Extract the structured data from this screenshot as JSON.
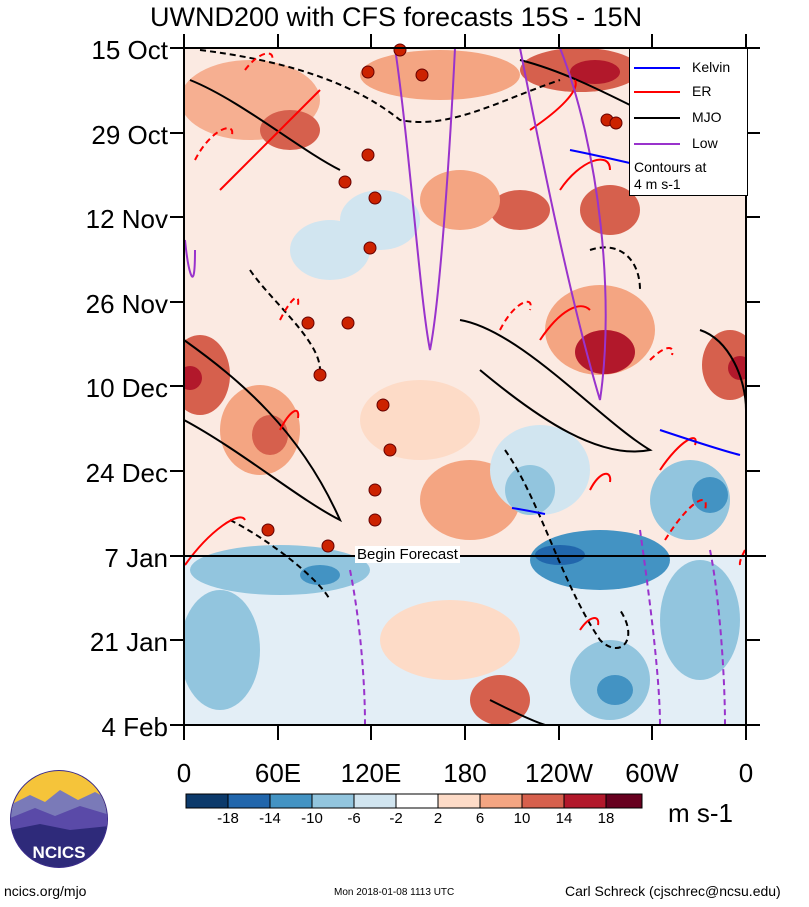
{
  "title": "UWND200 with CFS forecasts  15S - 15N",
  "chart_data": {
    "type": "heatmap",
    "title": "UWND200 with CFS forecasts  15S - 15N",
    "variable": "200 hPa zonal wind anomaly",
    "latitude_band": "15S - 15N",
    "y_tick_labels": [
      "15 Oct",
      "29 Oct",
      "12 Nov",
      "26 Nov",
      "10 Dec",
      "24 Dec",
      "7 Jan",
      "21 Jan",
      "4 Feb"
    ],
    "x_tick_labels": [
      "0",
      "60E",
      "120E",
      "180",
      "120W",
      "60W",
      "0"
    ],
    "x_range": [
      0,
      360
    ],
    "forecast_start": "7 Jan",
    "forecast_label": "Begin Forecast",
    "colorbar_levels": [
      -18,
      -14,
      -10,
      -6,
      -2,
      2,
      6,
      10,
      14,
      18
    ],
    "colorbar_tick_labels": [
      "-18",
      "-14",
      "-10",
      "-6",
      "-2",
      "2",
      "6",
      "10",
      "14",
      "18"
    ],
    "colorbar_colors": [
      "#0c3a6b",
      "#2166ac",
      "#4393c3",
      "#92c5de",
      "#d1e5f0",
      "#ffffff",
      "#fddbc7",
      "#f4a582",
      "#d6604d",
      "#b2182b",
      "#67001f"
    ],
    "colorbar_units": "m s-1",
    "legend": {
      "items": [
        {
          "label": "Kelvin",
          "color": "#0000ff"
        },
        {
          "label": "ER",
          "color": "#ff0000"
        },
        {
          "label": "MJO",
          "color": "#000000"
        },
        {
          "label": "Low",
          "color": "#9933cc"
        }
      ],
      "note_line1": "Contours at",
      "note_line2": "4 m s-1",
      "placement": "top-right"
    }
  },
  "footer": {
    "left": "ncics.org/mjo",
    "center": "Mon 2018-01-08 1113 UTC",
    "right": "Carl Schreck (cjschrec@ncsu.edu)"
  },
  "logo": {
    "text": "NCICS"
  }
}
